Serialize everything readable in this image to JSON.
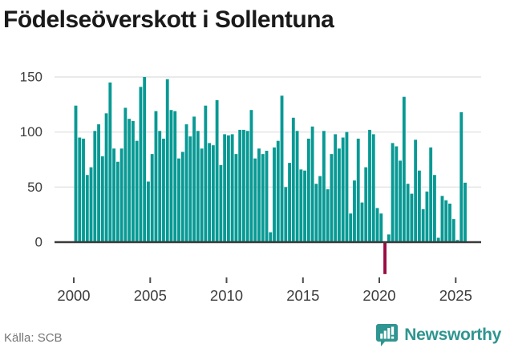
{
  "title": "Födelseöverskott i Sollentuna",
  "footer": {
    "source": "Källa: SCB"
  },
  "brand": {
    "name": "Newsworthy"
  },
  "colors": {
    "bar_positive": "#089994",
    "bar_negative": "#980c43",
    "gridline": "#e4e4e4",
    "baseline": "#3a3a3a",
    "tick": "#4d4d4d",
    "axis_text": "#3d3d3d",
    "title_text": "#1a1a1a",
    "source_text": "#757575",
    "brand_teal": "#2f9590"
  },
  "chart_data": {
    "type": "bar",
    "title": "Födelseöverskott i Sollentuna",
    "frequency": "quarterly",
    "start": "2000-Q1",
    "end": "2025-Q3",
    "grid": true,
    "legend": "none",
    "ylim": [
      -35,
      155
    ],
    "y_ticks": [
      150,
      100,
      50,
      0
    ],
    "x_ticks": [
      2000,
      2005,
      2010,
      2015,
      2020,
      2025
    ],
    "negative_highlight": {
      "index": 81,
      "period": "2020-Q2",
      "value": -29
    },
    "values": [
      124,
      95,
      94,
      61,
      68,
      101,
      107,
      78,
      117,
      145,
      85,
      73,
      85,
      122,
      112,
      110,
      92,
      141,
      150,
      55,
      80,
      119,
      101,
      94,
      148,
      120,
      119,
      76,
      82,
      107,
      96,
      114,
      101,
      85,
      124,
      90,
      88,
      129,
      70,
      98,
      97,
      98,
      80,
      102,
      102,
      101,
      120,
      76,
      85,
      80,
      83,
      9,
      86,
      92,
      133,
      50,
      72,
      113,
      101,
      66,
      65,
      94,
      105,
      53,
      60,
      101,
      48,
      80,
      98,
      85,
      95,
      100,
      26,
      56,
      94,
      36,
      68,
      102,
      98,
      31,
      26,
      -29,
      7,
      90,
      87,
      74,
      132,
      53,
      44,
      93,
      65,
      30,
      46,
      86,
      61,
      4,
      42,
      38,
      35,
      21,
      2,
      118,
      54
    ]
  }
}
